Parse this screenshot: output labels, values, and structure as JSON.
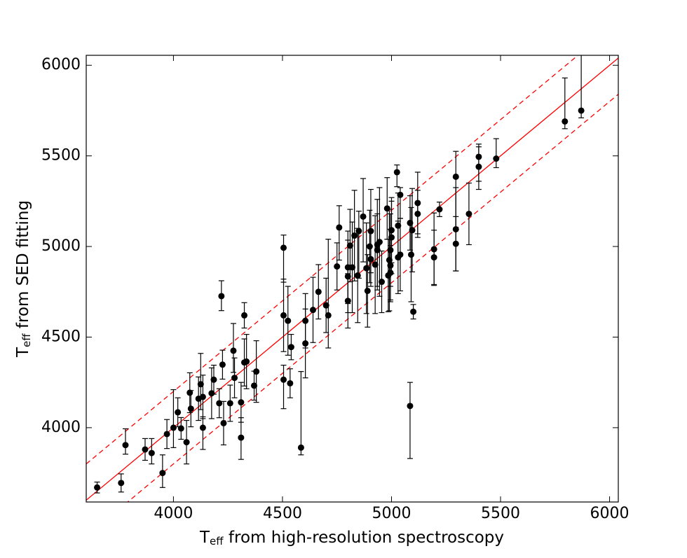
{
  "chart_data": {
    "type": "errorbar-scatter",
    "xlabel_parts": [
      "T",
      "eff",
      " from high-resolution spectroscopy"
    ],
    "ylabel_parts": [
      "T",
      "eff",
      " from SED fitting"
    ],
    "xlim": [
      3600,
      6040
    ],
    "ylim": [
      3590,
      6055
    ],
    "xticks": [
      4000,
      4500,
      5000,
      5500,
      6000
    ],
    "yticks": [
      4000,
      4500,
      5000,
      5500,
      6000
    ],
    "color": "#000000",
    "x": [
      3650,
      3760,
      3780,
      3870,
      3900,
      3950,
      3970,
      4000,
      4020,
      4035,
      4060,
      4075,
      4080,
      4115,
      4125,
      4135,
      4135,
      4175,
      4185,
      4210,
      4220,
      4225,
      4230,
      4260,
      4275,
      4280,
      4310,
      4310,
      4325,
      4325,
      4335,
      4370,
      4380,
      4505,
      4505,
      4505,
      4525,
      4535,
      4540,
      4585,
      4605,
      4605,
      4640,
      4665,
      4700,
      4710,
      4750,
      4760,
      4800,
      4800,
      4800,
      4810,
      4820,
      4830,
      4845,
      4850,
      4870,
      4885,
      4890,
      4900,
      4905,
      4905,
      4925,
      4935,
      4935,
      4945,
      4955,
      4980,
      4985,
      4990,
      4995,
      4995,
      5000,
      5000,
      4995,
      5025,
      5030,
      5030,
      5040,
      5040,
      5085,
      5085,
      5090,
      5095,
      5100,
      5120,
      5120,
      5195,
      5195,
      5220,
      5295,
      5295,
      5295,
      5355,
      5400,
      5400,
      5480,
      5795,
      5870
    ],
    "y": [
      3670,
      3695,
      3904,
      3880,
      3860,
      3750,
      3965,
      4000,
      4085,
      3996,
      3920,
      4193,
      4105,
      4160,
      4240,
      4170,
      4000,
      4190,
      4265,
      4135,
      4726,
      4348,
      4025,
      4135,
      4425,
      4275,
      3945,
      4140,
      4360,
      4620,
      4365,
      4232,
      4310,
      4993,
      4620,
      4265,
      4590,
      4245,
      4445,
      3890,
      4465,
      4590,
      4650,
      4750,
      4675,
      4620,
      4890,
      5105,
      4885,
      4835,
      4700,
      5005,
      4885,
      5060,
      4840,
      5085,
      5165,
      4880,
      4755,
      5000,
      4930,
      5085,
      4900,
      4980,
      5010,
      5025,
      4805,
      5210,
      4840,
      4925,
      4895,
      4980,
      5050,
      5090,
      4855,
      5410,
      5115,
      4940,
      4955,
      5285,
      5130,
      4120,
      4955,
      5090,
      4640,
      5240,
      5180,
      4985,
      4940,
      5205,
      5385,
      5095,
      5015,
      5180,
      5495,
      5440,
      5485,
      5690,
      5750
    ],
    "yerr_low": [
      30,
      50,
      50,
      60,
      60,
      80,
      80,
      110,
      80,
      60,
      120,
      110,
      100,
      120,
      140,
      120,
      120,
      140,
      80,
      80,
      80,
      80,
      120,
      100,
      120,
      110,
      120,
      110,
      130,
      70,
      150,
      80,
      170,
      190,
      200,
      160,
      190,
      80,
      70,
      40,
      190,
      150,
      180,
      150,
      150,
      180,
      130,
      180,
      200,
      200,
      150,
      200,
      250,
      250,
      260,
      260,
      250,
      250,
      200,
      200,
      150,
      230,
      270,
      200,
      250,
      300,
      170,
      170,
      200,
      280,
      200,
      200,
      200,
      180,
      150,
      80,
      180,
      200,
      200,
      130,
      150,
      290,
      260,
      230,
      40,
      170,
      130,
      200,
      150,
      40,
      290,
      230,
      150,
      170,
      180,
      80,
      50,
      40,
      40
    ],
    "yerr_high": [
      30,
      50,
      90,
      60,
      80,
      100,
      80,
      210,
      80,
      60,
      120,
      110,
      100,
      120,
      170,
      120,
      60,
      140,
      80,
      80,
      85,
      80,
      120,
      100,
      150,
      110,
      110,
      110,
      130,
      70,
      150,
      80,
      170,
      70,
      200,
      80,
      190,
      80,
      70,
      420,
      190,
      150,
      180,
      150,
      150,
      420,
      130,
      120,
      200,
      200,
      150,
      200,
      250,
      250,
      260,
      110,
      210,
      250,
      200,
      200,
      150,
      230,
      270,
      200,
      250,
      300,
      170,
      170,
      200,
      280,
      200,
      200,
      200,
      180,
      150,
      40,
      180,
      200,
      200,
      40,
      150,
      130,
      260,
      230,
      40,
      170,
      130,
      200,
      150,
      40,
      140,
      230,
      150,
      170,
      70,
      110,
      110,
      240,
      360
    ],
    "ref_lines": [
      {
        "offset": 0,
        "style": "solid",
        "color": "#ff0000"
      },
      {
        "offset": 200,
        "style": "dashed",
        "color": "#ff0000"
      },
      {
        "offset": -200,
        "style": "dashed",
        "color": "#ff0000"
      }
    ]
  }
}
